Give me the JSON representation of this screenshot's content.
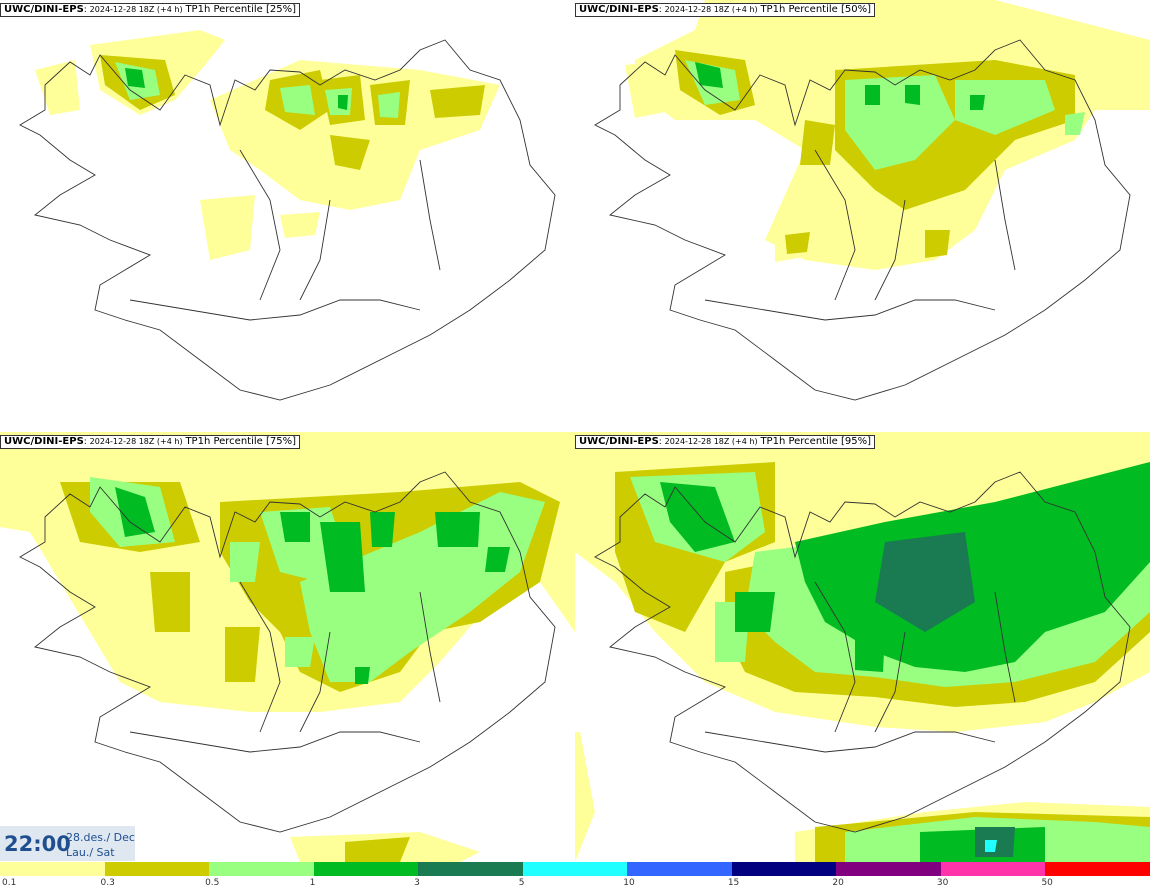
{
  "panels": [
    {
      "model": "UWC/DINI-EPS",
      "run": "2024-12-28 18Z (+4 h)",
      "variable": "TP1h Percentile [25%]"
    },
    {
      "model": "UWC/DINI-EPS",
      "run": "2024-12-28 18Z (+4 h)",
      "variable": "TP1h Percentile [50%]"
    },
    {
      "model": "UWC/DINI-EPS",
      "run": "2024-12-28 18Z (+4 h)",
      "variable": "TP1h Percentile [75%]"
    },
    {
      "model": "UWC/DINI-EPS",
      "run": "2024-12-28 18Z (+4 h)",
      "variable": "TP1h Percentile [95%]"
    }
  ],
  "timestamp": {
    "time": "22:00",
    "date_line1": "28.des./ Dec",
    "date_line2": "Lau./ Sat"
  },
  "colorbar": {
    "ticks": [
      "0.1",
      "0.3",
      "0.5",
      "1",
      "3",
      "5",
      "10",
      "15",
      "20",
      "30",
      "50"
    ],
    "colors": [
      "#ffff99",
      "#cccc00",
      "#99ff80",
      "#00bb22",
      "#1a7a52",
      "#22ffff",
      "#3366ff",
      "#000080",
      "#800080",
      "#ff33aa",
      "#ff0000"
    ]
  },
  "colors": {
    "p01": "#ffff99",
    "p03": "#cccc00",
    "p05": "#99ff80",
    "p1": "#00bb22",
    "p3": "#1a7a52",
    "p5": "#22ffff",
    "coastline": "#333333"
  }
}
